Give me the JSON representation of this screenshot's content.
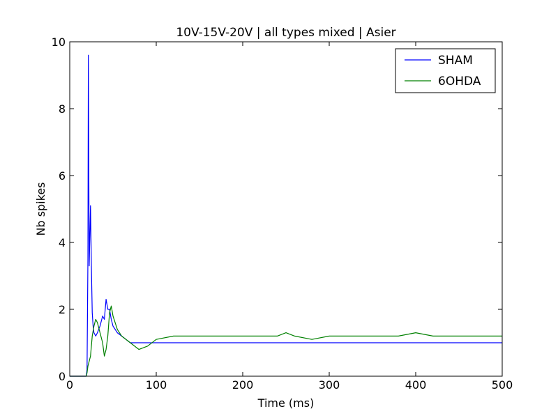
{
  "chart_data": {
    "type": "line",
    "title": "10V-15V-20V | all types mixed | Asier",
    "xlabel": "Time (ms)",
    "ylabel": "Nb spikes",
    "xlim": [
      0,
      500
    ],
    "ylim": [
      0,
      10
    ],
    "xticks": [
      0,
      100,
      200,
      300,
      400,
      500
    ],
    "yticks": [
      0,
      2,
      4,
      6,
      8,
      10
    ],
    "xtick_labels": [
      "0",
      "100",
      "200",
      "300",
      "400",
      "500"
    ],
    "ytick_labels": [
      "0",
      "2",
      "4",
      "6",
      "8",
      "10"
    ],
    "grid": false,
    "legend_position": "top-right",
    "series": [
      {
        "name": "SHAM",
        "color": "#0000ff",
        "x": [
          0,
          19,
          20,
          21,
          21.5,
          22,
          22.5,
          23,
          24,
          25,
          26,
          27,
          28,
          30,
          32,
          35,
          38,
          40,
          42,
          44,
          46,
          48,
          50,
          55,
          60,
          65,
          70,
          80,
          90,
          100,
          120,
          140,
          160,
          180,
          200,
          220,
          240,
          260,
          280,
          300,
          320,
          340,
          360,
          380,
          400,
          420,
          440,
          460,
          480,
          500
        ],
        "y": [
          0,
          0,
          0.2,
          3.5,
          9.6,
          6.5,
          3.3,
          3.9,
          5.1,
          3.3,
          1.9,
          1.5,
          1.3,
          1.2,
          1.3,
          1.5,
          1.8,
          1.7,
          2.3,
          2.0,
          2.0,
          1.7,
          1.5,
          1.3,
          1.2,
          1.1,
          1.0,
          1.0,
          1.0,
          1.0,
          1.0,
          1.0,
          1.0,
          1.0,
          1.0,
          1.0,
          1.0,
          1.0,
          1.0,
          1.0,
          1.0,
          1.0,
          1.0,
          1.0,
          1.0,
          1.0,
          1.0,
          1.0,
          1.0,
          1.0
        ]
      },
      {
        "name": "6OHDA",
        "color": "#008000",
        "x": [
          0,
          19,
          20,
          21,
          22,
          23,
          24,
          26,
          28,
          30,
          32,
          35,
          38,
          40,
          42,
          44,
          46,
          48,
          50,
          55,
          60,
          70,
          80,
          90,
          100,
          120,
          140,
          160,
          180,
          200,
          220,
          240,
          250,
          260,
          280,
          300,
          320,
          340,
          360,
          380,
          400,
          420,
          440,
          460,
          480,
          500
        ],
        "y": [
          0,
          0,
          0.1,
          0.3,
          0.4,
          0.5,
          0.6,
          1.2,
          1.5,
          1.7,
          1.6,
          1.3,
          1.0,
          0.6,
          0.8,
          1.2,
          1.9,
          2.1,
          1.8,
          1.4,
          1.2,
          1.0,
          0.8,
          0.9,
          1.1,
          1.2,
          1.2,
          1.2,
          1.2,
          1.2,
          1.2,
          1.2,
          1.3,
          1.2,
          1.1,
          1.2,
          1.2,
          1.2,
          1.2,
          1.2,
          1.3,
          1.2,
          1.2,
          1.2,
          1.2,
          1.2
        ]
      }
    ]
  }
}
